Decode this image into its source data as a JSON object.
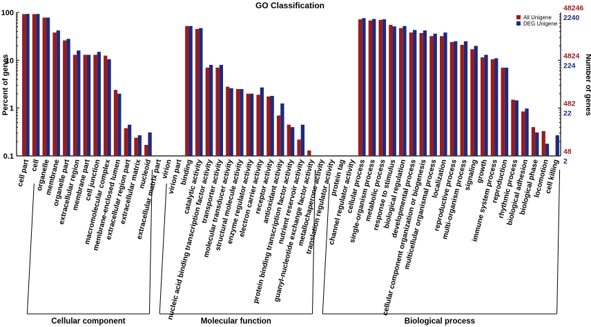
{
  "chart_data": {
    "type": "bar",
    "title": "GO Classification",
    "ylabel_left": "Percent of genes",
    "ylabel_right": "Number of genes",
    "y_scale": "log",
    "ylim": [
      0.1,
      100
    ],
    "left_ticks": [
      "100",
      "10",
      "1",
      "0.1"
    ],
    "right_ticks_all": [
      "48246",
      "4824",
      "482",
      "48"
    ],
    "right_ticks_deg": [
      "2240",
      "224",
      "22",
      "2"
    ],
    "colors": {
      "all": "#9b1b1b",
      "deg": "#1f2a7a"
    },
    "legend": {
      "position": "top-right",
      "entries": [
        "All Unigene",
        "DEG Unigene"
      ]
    },
    "groups": [
      "Cellular component",
      "Molecular function",
      "Biological process"
    ],
    "group_spans": [
      [
        0,
        12
      ],
      [
        13,
        28
      ],
      [
        29,
        52
      ]
    ],
    "categories": [
      "cell part",
      "cell",
      "organelle",
      "membrane",
      "organelle part",
      "extracellular region",
      "membrane part",
      "cell junction",
      "macromolecular complex",
      "membrane-enclosed lumen",
      "extracellular region part",
      "extracellular matrix",
      "nucleoid",
      "extracellular matrix part",
      "virion",
      "virion part",
      "binding",
      "catalytic activity",
      "nucleic acid binding transcription factor activity",
      "transporter activity",
      "molecular transducer activity",
      "structural molecule activity",
      "enzyme regulator activity",
      "electron carrier activity",
      "receptor activity",
      "antioxidant activity",
      "protein binding transcription factor activity",
      "nutrient reservoir activity",
      "guanyl-nucleotide exchange factor activity",
      "metallochaperone activity",
      "translation regulator activity",
      "protein tag",
      "channel regulator activity",
      "cellular process",
      "single-organism process",
      "metabolic process",
      "response to stimulus",
      "biological regulation",
      "developmental process",
      "cellular component organization or biogenesis",
      "multicellular organismal process",
      "localization",
      "reproductive process",
      "multi-organism process",
      "signaling",
      "growth",
      "immune system process",
      "reproduction",
      "rhythmic process",
      "biological adhesion",
      "biological phase",
      "locomotion",
      "cell killing"
    ],
    "series": [
      {
        "name": "All Unigene",
        "values": [
          92,
          92,
          78,
          38,
          26,
          13,
          13,
          13,
          12.5,
          2.4,
          0.38,
          0.24,
          0.17,
          0,
          0,
          0,
          52,
          45,
          7,
          7,
          2.8,
          2.5,
          2.0,
          1.9,
          1.75,
          0.7,
          0.45,
          0.22,
          0.13,
          0,
          0,
          0,
          0,
          72,
          68,
          70,
          55,
          47,
          38,
          37,
          32,
          32,
          24,
          21,
          17,
          11.5,
          10.5,
          7,
          1.5,
          0.85,
          0.4,
          0.33,
          0
        ]
      },
      {
        "name": "DEG Unigene",
        "values": [
          93,
          93,
          78,
          42,
          28,
          16,
          13,
          15,
          10.5,
          2.0,
          0.45,
          0.27,
          0.31,
          0,
          0,
          0,
          52,
          47,
          8,
          8,
          2.6,
          2.5,
          2.0,
          2.7,
          1.8,
          1.25,
          0.4,
          0.45,
          0,
          0,
          0,
          0,
          0,
          76,
          73,
          72,
          51,
          52,
          43,
          42,
          36,
          38,
          25,
          25,
          20,
          13,
          11,
          7,
          1.45,
          0.98,
          0.31,
          0.18,
          0.27
        ]
      }
    ]
  }
}
